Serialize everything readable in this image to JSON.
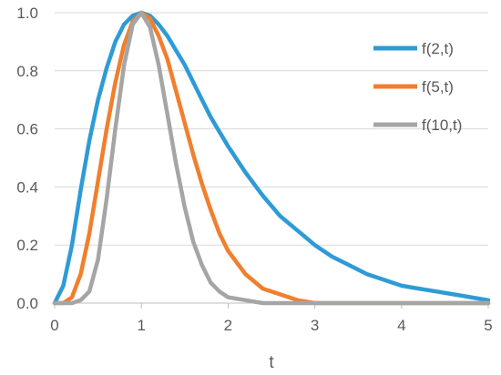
{
  "chart_data": {
    "type": "line",
    "title": "",
    "xlabel": "t",
    "ylabel": "",
    "xlim": [
      0,
      5
    ],
    "ylim": [
      0,
      1.0
    ],
    "grid": true,
    "legend_position": "top-right",
    "x_ticks": [
      "0",
      "1",
      "2",
      "3",
      "4",
      "5"
    ],
    "y_ticks": [
      "0.0",
      "0.2",
      "0.4",
      "0.6",
      "0.8",
      "1.0"
    ],
    "x": [
      0,
      0.1,
      0.2,
      0.3,
      0.4,
      0.5,
      0.6,
      0.7,
      0.8,
      0.9,
      1.0,
      1.1,
      1.2,
      1.3,
      1.4,
      1.5,
      1.6,
      1.7,
      1.8,
      1.9,
      2.0,
      2.2,
      2.4,
      2.6,
      2.8,
      3.0,
      3.2,
      3.4,
      3.6,
      3.8,
      4.0,
      4.2,
      4.4,
      4.6,
      4.8,
      5.0
    ],
    "series": [
      {
        "name": "f(2,t)",
        "color": "#2e9bd6",
        "values": [
          0.0,
          0.06,
          0.2,
          0.39,
          0.56,
          0.7,
          0.81,
          0.9,
          0.96,
          0.99,
          1.0,
          0.99,
          0.96,
          0.92,
          0.87,
          0.82,
          0.76,
          0.7,
          0.64,
          0.59,
          0.54,
          0.45,
          0.37,
          0.3,
          0.25,
          0.2,
          0.16,
          0.13,
          0.1,
          0.08,
          0.06,
          0.05,
          0.04,
          0.03,
          0.02,
          0.01
        ]
      },
      {
        "name": "f(5,t)",
        "color": "#f07f2e",
        "values": [
          0.0,
          0.0,
          0.02,
          0.1,
          0.24,
          0.42,
          0.6,
          0.76,
          0.89,
          0.97,
          1.0,
          0.98,
          0.92,
          0.84,
          0.73,
          0.62,
          0.51,
          0.41,
          0.32,
          0.24,
          0.18,
          0.1,
          0.05,
          0.03,
          0.01,
          0.0,
          0.0,
          0.0,
          0.0,
          0.0,
          0.0,
          0.0,
          0.0,
          0.0,
          0.0,
          0.0
        ]
      },
      {
        "name": "f(10,t)",
        "color": "#a5a5a5",
        "values": [
          0.0,
          0.0,
          0.0,
          0.01,
          0.04,
          0.15,
          0.36,
          0.6,
          0.82,
          0.96,
          1.0,
          0.95,
          0.82,
          0.65,
          0.48,
          0.33,
          0.21,
          0.13,
          0.07,
          0.04,
          0.02,
          0.01,
          0.0,
          0.0,
          0.0,
          0.0,
          0.0,
          0.0,
          0.0,
          0.0,
          0.0,
          0.0,
          0.0,
          0.0,
          0.0,
          0.0
        ]
      }
    ]
  }
}
